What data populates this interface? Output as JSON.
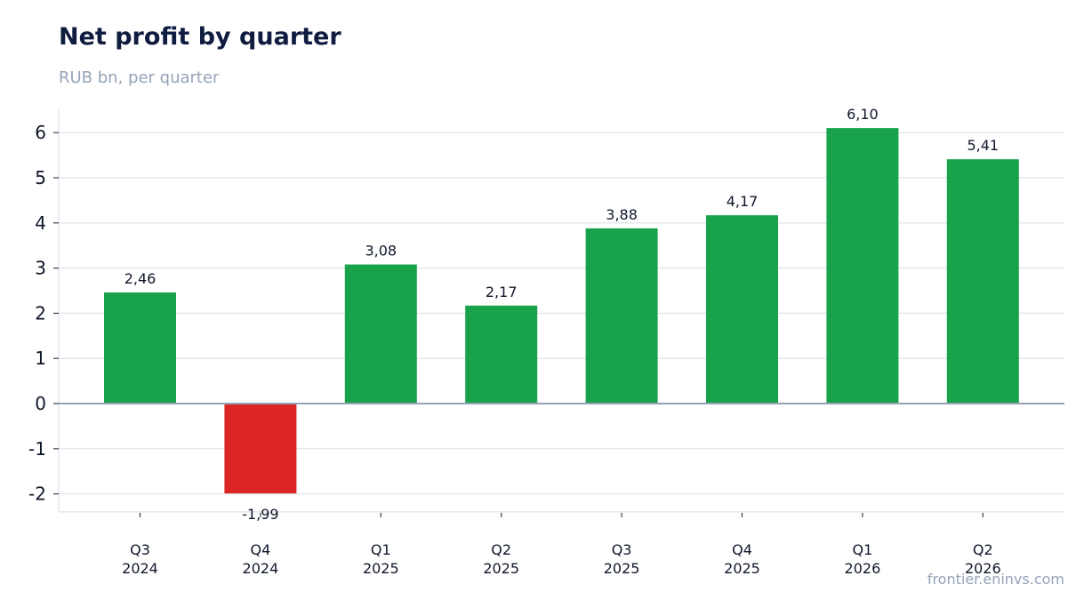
{
  "header": {
    "title": "Net profit by quarter",
    "subtitle": "RUB bn, per quarter"
  },
  "footer": {
    "source": "frontier.eninvs.com"
  },
  "colors": {
    "positive": "#18a34a",
    "negative": "#dc2626",
    "grid": "#e5e7eb",
    "zero_line": "#94a3b8",
    "text": "#0f172a"
  },
  "chart_data": {
    "type": "bar",
    "title": "Net profit by quarter",
    "subtitle": "RUB bn, per quarter",
    "xlabel": "",
    "ylabel": "",
    "ylim": [
      -2.4,
      6.5
    ],
    "yticks": [
      -2,
      -1,
      0,
      1,
      2,
      3,
      4,
      5,
      6
    ],
    "grid": true,
    "legend": "none",
    "categories": [
      {
        "quarter": "Q3",
        "year": "2024"
      },
      {
        "quarter": "Q4",
        "year": "2024"
      },
      {
        "quarter": "Q1",
        "year": "2025"
      },
      {
        "quarter": "Q2",
        "year": "2025"
      },
      {
        "quarter": "Q3",
        "year": "2025"
      },
      {
        "quarter": "Q4",
        "year": "2025"
      },
      {
        "quarter": "Q1",
        "year": "2026"
      },
      {
        "quarter": "Q2",
        "year": "2026"
      }
    ],
    "values": [
      2.46,
      -1.99,
      3.08,
      2.17,
      3.88,
      4.17,
      6.1,
      5.41
    ],
    "value_labels": [
      "2,46",
      "-1,99",
      "3,08",
      "2,17",
      "3,88",
      "4,17",
      "6,10",
      "5,41"
    ]
  }
}
